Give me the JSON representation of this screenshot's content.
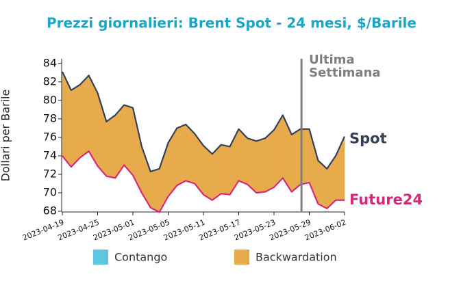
{
  "chart_data": {
    "type": "spread",
    "title": "Prezzi giornalieri: Brent Spot - 24 mesi, $/Barile",
    "y_label": "Dollari per Barile",
    "categories": [
      "2023-04-19",
      null,
      null,
      null,
      "2023-04-25",
      null,
      null,
      null,
      "2023-05-01",
      null,
      null,
      null,
      "2023-05-05",
      null,
      null,
      null,
      "2023-05-11",
      null,
      null,
      null,
      "2023-05-17",
      null,
      null,
      null,
      "2023-05-23",
      null,
      null,
      null,
      "2023-05-29",
      null,
      null,
      null,
      "2023-06-02"
    ],
    "series": [
      {
        "name": "Spot",
        "color": "#34405a",
        "values": [
          83.1,
          81.1,
          81.7,
          82.7,
          80.8,
          77.7,
          78.4,
          79.5,
          79.2,
          75.0,
          72.3,
          72.6,
          75.4,
          77.0,
          77.4,
          76.4,
          75.1,
          74.2,
          75.2,
          75.0,
          76.9,
          75.9,
          75.6,
          75.9,
          76.8,
          78.4,
          76.3,
          76.9,
          76.9,
          73.5,
          72.6,
          74.0,
          76.1
        ]
      },
      {
        "name": "Future24",
        "color": "#d6287a",
        "values": [
          74.0,
          72.8,
          73.8,
          74.5,
          72.9,
          71.8,
          71.6,
          73.0,
          71.9,
          70.0,
          68.4,
          67.9,
          69.6,
          70.8,
          71.3,
          71.0,
          69.8,
          69.2,
          69.9,
          69.8,
          71.3,
          70.9,
          70.0,
          70.1,
          70.6,
          71.6,
          70.1,
          70.9,
          71.1,
          68.8,
          68.3,
          69.2,
          69.2
        ]
      }
    ],
    "fill_legend": [
      {
        "name": "Contango",
        "color": "#5bc8e0"
      },
      {
        "name": "Backwardation",
        "color": "#e8ab4c"
      }
    ],
    "ylim": [
      68,
      84.5
    ],
    "yticks": [
      68,
      70,
      72,
      74,
      76,
      78,
      80,
      82,
      84
    ],
    "marker_line": {
      "index": 27,
      "label_lines": [
        "Ultima",
        "Settimana"
      ],
      "color": "#7f7f7f"
    }
  }
}
